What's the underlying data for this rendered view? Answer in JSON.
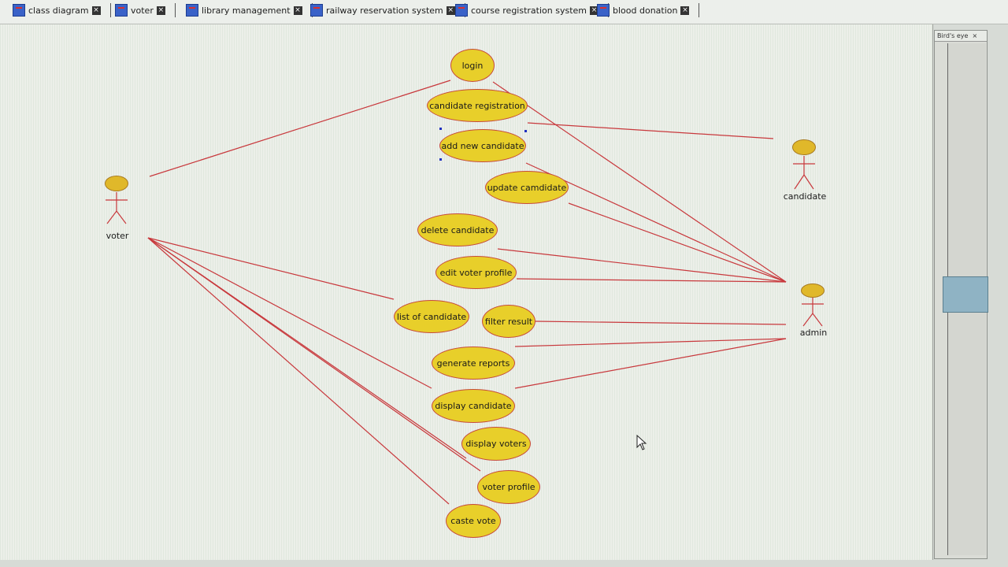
{
  "tabs": [
    {
      "label": "class diagram"
    },
    {
      "label": "voter"
    },
    {
      "label": "library management"
    },
    {
      "label": "railway reservation system"
    },
    {
      "label": "course registration system"
    },
    {
      "label": "blood donation"
    }
  ],
  "panel": {
    "title": "Bird's eye"
  },
  "actors": [
    {
      "name": "voter"
    },
    {
      "name": "candidate"
    },
    {
      "name": "admin"
    }
  ],
  "use_cases": [
    {
      "label": "login"
    },
    {
      "label": "candidate registration"
    },
    {
      "label": "add new candidate"
    },
    {
      "label": "update camdidate"
    },
    {
      "label": "delete candidate"
    },
    {
      "label": "edit voter profile"
    },
    {
      "label": "list of candidate"
    },
    {
      "label": "filter result"
    },
    {
      "label": "generate reports"
    },
    {
      "label": "display candidate"
    },
    {
      "label": "display voters"
    },
    {
      "label": "voter profile"
    },
    {
      "label": "caste vote"
    }
  ],
  "colors": {
    "use_case_fill": "#e8cf2a",
    "association_line": "#c8383c"
  }
}
